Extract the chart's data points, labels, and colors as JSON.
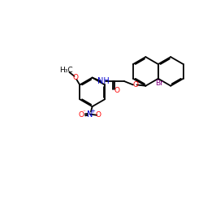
{
  "bg_color": "#ffffff",
  "bond_lw": 1.3,
  "figsize": [
    2.5,
    2.5
  ],
  "dpi": 100,
  "colors": {
    "O": "#ff0000",
    "N": "#0000cc",
    "Br": "#800080",
    "C": "#000000"
  },
  "xlim": [
    0,
    10
  ],
  "ylim": [
    0,
    10
  ],
  "font_size": 6.5
}
